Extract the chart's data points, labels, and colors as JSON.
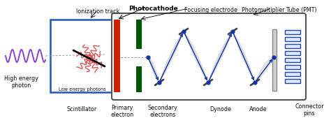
{
  "labels": {
    "photocathode": "Photocathode",
    "ionization_track": "Ionization track",
    "focusing_electrode": "Focusing electrode",
    "pmt": "Photomultiplier Tube (PMT)",
    "high_energy_photon": "High energy\nphoton",
    "low_energy_photons": "Low energy photons",
    "scintillator": "Scintillator",
    "primary_electron": "Primary\nelectron",
    "secondary_electrons": "Secondary\nelectrons",
    "dynode": "Dynode",
    "anode": "Anode",
    "connector_pins": "Connector\npins"
  },
  "colors": {
    "scintillator_box": "#2255bb",
    "pmt_box": "#555555",
    "photocathode_red": "#cc2200",
    "focusing_electrode_green": "#005500",
    "photon_wave": "#8844cc",
    "low_energy_photons": "#dd4444",
    "dynode_gray": "#aaaaaa",
    "arrow_blue": "#1133aa",
    "connector_blue": "#2244aa",
    "text": "#111111"
  }
}
